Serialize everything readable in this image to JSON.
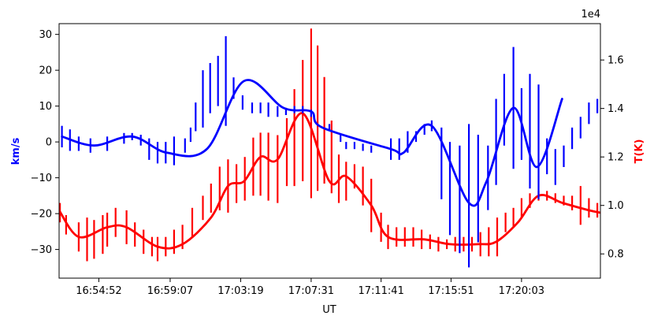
{
  "chart_data": {
    "type": "line",
    "xlabel": "UT",
    "x_ticks": [
      "16:54:52",
      "16:59:07",
      "17:03:19",
      "17:07:31",
      "17:11:41",
      "17:15:51",
      "17:20:03"
    ],
    "y_left": {
      "label": "km/s",
      "color": "#0000ff",
      "lim": [
        -38,
        33
      ],
      "ticks": [
        -30,
        -20,
        -10,
        0,
        10,
        20,
        30
      ]
    },
    "y_right": {
      "label": "T(K)",
      "color": "#ff0000",
      "lim": [
        0.7,
        1.75
      ],
      "ticks": [
        0.8,
        1.0,
        1.2,
        1.4,
        1.6
      ],
      "tick_labels": [
        "0.8",
        "1.0",
        "1.2",
        "1.4",
        "1.6"
      ],
      "offset_label": "1e4"
    },
    "series": [
      {
        "axis": "left",
        "color": "#0000ff",
        "x": [
          "16:52:40",
          "16:54:35",
          "16:56:51",
          "16:58:55",
          "17:01:18",
          "17:03:31",
          "17:05:52",
          "17:07:31",
          "17:08:11",
          "17:12:16",
          "17:13:01",
          "17:14:42",
          "17:16:55",
          "17:17:58",
          "17:19:34",
          "17:20:58",
          "17:22:28"
        ],
        "values": [
          1.5,
          -1,
          1.5,
          -3,
          -2,
          17,
          9.5,
          8.5,
          4,
          -2,
          -3,
          4.5,
          -17,
          -11,
          9.5,
          -7,
          12
        ],
        "error_points": [
          {
            "x": "16:52:40",
            "value": 1.5,
            "err": 3
          },
          {
            "x": "16:53:09",
            "value": 0.5,
            "err": 3
          },
          {
            "x": "16:53:40",
            "value": -0.5,
            "err": 2
          },
          {
            "x": "16:54:22",
            "value": -1,
            "err": 2
          },
          {
            "x": "16:55:22",
            "value": -0.5,
            "err": 2
          },
          {
            "x": "16:56:22",
            "value": 1,
            "err": 1.5
          },
          {
            "x": "16:56:51",
            "value": 1.5,
            "err": 1
          },
          {
            "x": "16:57:22",
            "value": 0.5,
            "err": 1.5
          },
          {
            "x": "16:57:52",
            "value": -2,
            "err": 3
          },
          {
            "x": "16:58:22",
            "value": -3,
            "err": 3
          },
          {
            "x": "16:58:51",
            "value": -3,
            "err": 3
          },
          {
            "x": "16:59:21",
            "value": -2.5,
            "err": 4
          },
          {
            "x": "17:00:00",
            "value": -1,
            "err": 2
          },
          {
            "x": "17:00:20",
            "value": 2,
            "err": 2
          },
          {
            "x": "17:00:38",
            "value": 7,
            "err": 4
          },
          {
            "x": "17:01:04",
            "value": 12,
            "err": 8
          },
          {
            "x": "17:01:30",
            "value": 15,
            "err": 7
          },
          {
            "x": "17:01:58",
            "value": 17,
            "err": 7
          },
          {
            "x": "17:02:26",
            "value": 17,
            "err": 12.5
          },
          {
            "x": "17:02:54",
            "value": 15,
            "err": 3
          },
          {
            "x": "17:03:26",
            "value": 11,
            "err": 2
          },
          {
            "x": "17:04:00",
            "value": 9.5,
            "err": 1.5
          },
          {
            "x": "17:04:30",
            "value": 9.5,
            "err": 1.5
          },
          {
            "x": "17:04:58",
            "value": 9,
            "err": 2
          },
          {
            "x": "17:05:31",
            "value": 8.5,
            "err": 1.5
          },
          {
            "x": "17:06:01",
            "value": 8.5,
            "err": 1
          },
          {
            "x": "17:06:31",
            "value": 9,
            "err": 1
          },
          {
            "x": "17:07:01",
            "value": 9,
            "err": 1
          },
          {
            "x": "17:07:31",
            "value": 8,
            "err": 1
          },
          {
            "x": "17:08:36",
            "value": 4,
            "err": 1
          },
          {
            "x": "17:09:16",
            "value": 1,
            "err": 1
          },
          {
            "x": "17:09:36",
            "value": -1,
            "err": 1
          },
          {
            "x": "17:10:06",
            "value": -1,
            "err": 1
          },
          {
            "x": "17:10:36",
            "value": -1.5,
            "err": 1
          },
          {
            "x": "17:11:06",
            "value": -2,
            "err": 1
          },
          {
            "x": "17:12:16",
            "value": -2,
            "err": 3
          },
          {
            "x": "17:12:46",
            "value": -2,
            "err": 3
          },
          {
            "x": "17:13:16",
            "value": 0,
            "err": 3
          },
          {
            "x": "17:13:46",
            "value": 1.5,
            "err": 1.5
          },
          {
            "x": "17:14:16",
            "value": 3.5,
            "err": 1.5
          },
          {
            "x": "17:14:42",
            "value": 4.5,
            "err": 1.5
          },
          {
            "x": "17:15:17",
            "value": -6,
            "err": 10
          },
          {
            "x": "17:15:47",
            "value": -13,
            "err": 13
          },
          {
            "x": "17:16:22",
            "value": -16,
            "err": 15
          },
          {
            "x": "17:16:55",
            "value": -15,
            "err": 20
          },
          {
            "x": "17:17:28",
            "value": -13,
            "err": 15
          },
          {
            "x": "17:18:03",
            "value": -10,
            "err": 9
          },
          {
            "x": "17:18:32",
            "value": 0,
            "err": 12
          },
          {
            "x": "17:19:01",
            "value": 9,
            "err": 10
          },
          {
            "x": "17:19:34",
            "value": 9.5,
            "err": 17
          },
          {
            "x": "17:20:03",
            "value": 5,
            "err": 10
          },
          {
            "x": "17:20:33",
            "value": 3,
            "err": 16
          },
          {
            "x": "17:21:04",
            "value": 0,
            "err": 16
          },
          {
            "x": "17:21:34",
            "value": -4,
            "err": 5
          },
          {
            "x": "17:22:04",
            "value": -7,
            "err": 5
          },
          {
            "x": "17:22:34",
            "value": -4,
            "err": 3
          },
          {
            "x": "17:23:04",
            "value": 1,
            "err": 3
          },
          {
            "x": "17:23:34",
            "value": 4,
            "err": 3
          },
          {
            "x": "17:24:04",
            "value": 8,
            "err": 3
          },
          {
            "x": "17:24:34",
            "value": 10,
            "err": 2
          }
        ]
      },
      {
        "axis": "right",
        "color": "#ff0000",
        "x": [
          "16:52:30",
          "16:53:40",
          "16:55:22",
          "16:56:31",
          "16:58:22",
          "16:59:51",
          "17:01:33",
          "17:02:34",
          "17:03:31",
          "17:04:30",
          "17:05:31",
          "17:07:01",
          "17:08:36",
          "17:09:36",
          "17:11:06",
          "17:12:06",
          "17:14:16",
          "17:15:47",
          "17:17:28",
          "17:18:32",
          "17:19:50",
          "17:21:04",
          "17:22:30",
          "17:24:04",
          "17:24:45"
        ],
        "values": [
          0.98,
          0.87,
          0.91,
          0.91,
          0.83,
          0.84,
          0.95,
          1.08,
          1.1,
          1.2,
          1.19,
          1.38,
          1.1,
          1.12,
          1.0,
          0.87,
          0.86,
          0.84,
          0.84,
          0.85,
          0.93,
          1.04,
          1.01,
          0.98,
          0.97
        ],
        "error_points": [
          {
            "x": "16:52:33",
            "value": 0.97,
            "err": 0.04
          },
          {
            "x": "16:52:55",
            "value": 0.92,
            "err": 0.04
          },
          {
            "x": "16:53:40",
            "value": 0.87,
            "err": 0.06
          },
          {
            "x": "16:54:10",
            "value": 0.86,
            "err": 0.09
          },
          {
            "x": "16:54:35",
            "value": 0.86,
            "err": 0.08
          },
          {
            "x": "16:55:06",
            "value": 0.88,
            "err": 0.08
          },
          {
            "x": "16:55:22",
            "value": 0.9,
            "err": 0.07
          },
          {
            "x": "16:55:52",
            "value": 0.93,
            "err": 0.06
          },
          {
            "x": "16:56:31",
            "value": 0.91,
            "err": 0.07
          },
          {
            "x": "16:57:01",
            "value": 0.88,
            "err": 0.05
          },
          {
            "x": "16:57:32",
            "value": 0.85,
            "err": 0.05
          },
          {
            "x": "16:58:02",
            "value": 0.83,
            "err": 0.04
          },
          {
            "x": "16:58:22",
            "value": 0.82,
            "err": 0.05
          },
          {
            "x": "16:58:51",
            "value": 0.83,
            "err": 0.04
          },
          {
            "x": "16:59:21",
            "value": 0.85,
            "err": 0.05
          },
          {
            "x": "16:59:51",
            "value": 0.87,
            "err": 0.05
          },
          {
            "x": "17:00:26",
            "value": 0.93,
            "err": 0.06
          },
          {
            "x": "17:01:04",
            "value": 0.99,
            "err": 0.05
          },
          {
            "x": "17:01:33",
            "value": 1.03,
            "err": 0.06
          },
          {
            "x": "17:02:04",
            "value": 1.07,
            "err": 0.09
          },
          {
            "x": "17:02:34",
            "value": 1.08,
            "err": 0.11
          },
          {
            "x": "17:03:04",
            "value": 1.09,
            "err": 0.08
          },
          {
            "x": "17:03:34",
            "value": 1.11,
            "err": 0.09
          },
          {
            "x": "17:04:04",
            "value": 1.16,
            "err": 0.12
          },
          {
            "x": "17:04:30",
            "value": 1.17,
            "err": 0.13
          },
          {
            "x": "17:04:58",
            "value": 1.16,
            "err": 0.14
          },
          {
            "x": "17:05:31",
            "value": 1.15,
            "err": 0.14
          },
          {
            "x": "17:06:04",
            "value": 1.22,
            "err": 0.14
          },
          {
            "x": "17:06:31",
            "value": 1.28,
            "err": 0.2
          },
          {
            "x": "17:07:01",
            "value": 1.35,
            "err": 0.25
          },
          {
            "x": "17:07:31",
            "value": 1.38,
            "err": 0.35
          },
          {
            "x": "17:07:54",
            "value": 1.36,
            "err": 0.3
          },
          {
            "x": "17:08:18",
            "value": 1.31,
            "err": 0.22
          },
          {
            "x": "17:08:44",
            "value": 1.2,
            "err": 0.15
          },
          {
            "x": "17:09:10",
            "value": 1.11,
            "err": 0.1
          },
          {
            "x": "17:09:36",
            "value": 1.1,
            "err": 0.08
          },
          {
            "x": "17:10:06",
            "value": 1.12,
            "err": 0.05
          },
          {
            "x": "17:10:36",
            "value": 1.08,
            "err": 0.08
          },
          {
            "x": "17:11:06",
            "value": 1.0,
            "err": 0.11
          },
          {
            "x": "17:11:41",
            "value": 0.91,
            "err": 0.06
          },
          {
            "x": "17:12:06",
            "value": 0.87,
            "err": 0.05
          },
          {
            "x": "17:12:36",
            "value": 0.87,
            "err": 0.04
          },
          {
            "x": "17:13:06",
            "value": 0.87,
            "err": 0.04
          },
          {
            "x": "17:13:36",
            "value": 0.87,
            "err": 0.04
          },
          {
            "x": "17:14:06",
            "value": 0.86,
            "err": 0.04
          },
          {
            "x": "17:14:36",
            "value": 0.85,
            "err": 0.03
          },
          {
            "x": "17:15:06",
            "value": 0.84,
            "err": 0.03
          },
          {
            "x": "17:15:36",
            "value": 0.84,
            "err": 0.02
          },
          {
            "x": "17:16:06",
            "value": 0.84,
            "err": 0.03
          },
          {
            "x": "17:16:36",
            "value": 0.84,
            "err": 0.03
          },
          {
            "x": "17:17:06",
            "value": 0.84,
            "err": 0.03
          },
          {
            "x": "17:17:36",
            "value": 0.84,
            "err": 0.05
          },
          {
            "x": "17:18:06",
            "value": 0.85,
            "err": 0.06
          },
          {
            "x": "17:18:36",
            "value": 0.87,
            "err": 0.08
          },
          {
            "x": "17:19:06",
            "value": 0.93,
            "err": 0.04
          },
          {
            "x": "17:19:34",
            "value": 0.95,
            "err": 0.04
          },
          {
            "x": "17:20:03",
            "value": 0.99,
            "err": 0.04
          },
          {
            "x": "17:20:33",
            "value": 1.02,
            "err": 0.03
          },
          {
            "x": "17:21:04",
            "value": 1.04,
            "err": 0.02
          },
          {
            "x": "17:21:34",
            "value": 1.04,
            "err": 0.02
          },
          {
            "x": "17:22:04",
            "value": 1.03,
            "err": 0.02
          },
          {
            "x": "17:22:34",
            "value": 1.02,
            "err": 0.02
          },
          {
            "x": "17:23:04",
            "value": 1.01,
            "err": 0.03
          },
          {
            "x": "17:23:34",
            "value": 1.0,
            "err": 0.08
          },
          {
            "x": "17:24:04",
            "value": 0.99,
            "err": 0.04
          },
          {
            "x": "17:24:34",
            "value": 0.98,
            "err": 0.03
          }
        ]
      }
    ],
    "x_range": [
      "16:52:30",
      "17:24:45"
    ],
    "grid": false,
    "legend": false
  }
}
